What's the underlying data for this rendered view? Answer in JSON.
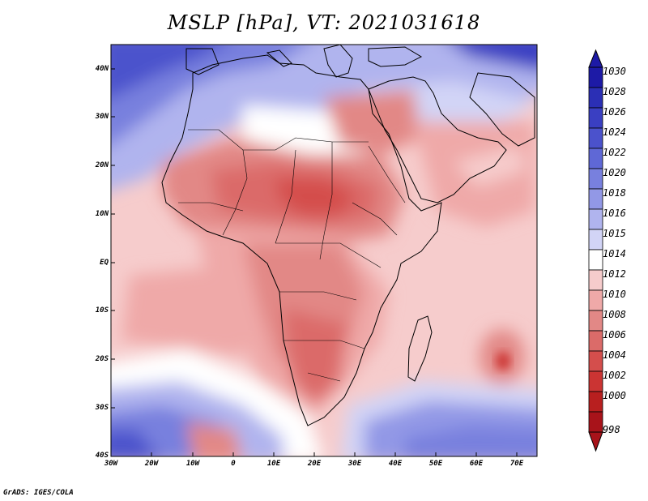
{
  "title": "MSLP [hPa], VT: 2021031618",
  "credit": "GrADS: IGES/COLA",
  "map": {
    "lon_range": [
      -30,
      75
    ],
    "lat_range": [
      -40,
      45
    ],
    "x_ticks": [
      "30W",
      "20W",
      "10W",
      "0",
      "10E",
      "20E",
      "30E",
      "40E",
      "50E",
      "60E",
      "70E"
    ],
    "y_ticks": [
      "40N",
      "30N",
      "20N",
      "10N",
      "EQ",
      "10S",
      "20S",
      "30S",
      "40S"
    ]
  },
  "colorbar": {
    "levels": [
      "1030",
      "1028",
      "1026",
      "1024",
      "1022",
      "1020",
      "1018",
      "1016",
      "1015",
      "1014",
      "1012",
      "1010",
      "1008",
      "1006",
      "1004",
      "1002",
      "1000",
      "998"
    ],
    "colors": [
      "#1d1aa6",
      "#2b2fb5",
      "#3a3fc2",
      "#4b52cc",
      "#5f68d6",
      "#7880de",
      "#9298e6",
      "#b0b4ee",
      "#d2d4f6",
      "#ffffff",
      "#f6cccc",
      "#efa9a8",
      "#e28886",
      "#db6b69",
      "#d44e4c",
      "#cb3433",
      "#b81f1f",
      "#a8131a"
    ],
    "top_arrow_color": "#1d1aa6",
    "bottom_arrow_color": "#a8131a"
  }
}
